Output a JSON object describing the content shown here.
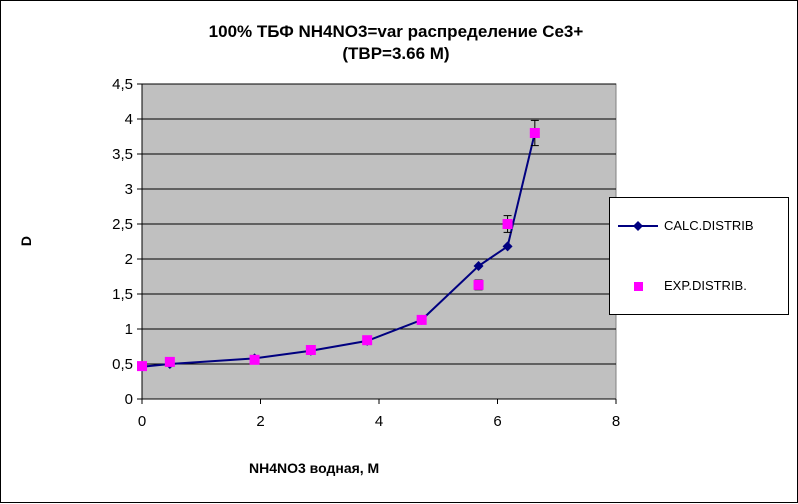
{
  "chart_data": {
    "type": "line",
    "title_line1": "100%  ТБФ  NH4NO3=var распределение Ce3+",
    "title_line2": "(TBP=3.66 M)",
    "xlabel": "NH4NO3  водная, М",
    "ylabel": "D",
    "xlim": [
      0,
      8
    ],
    "ylim": [
      0,
      4.5
    ],
    "x_ticks": [
      "0",
      "2",
      "4",
      "6",
      "8"
    ],
    "x_tick_values": [
      0,
      2,
      4,
      6,
      8
    ],
    "y_ticks": [
      "0",
      "0,5",
      "1",
      "1,5",
      "2",
      "2,5",
      "3",
      "3,5",
      "4",
      "4,5"
    ],
    "y_tick_values": [
      0,
      0.5,
      1,
      1.5,
      2,
      2.5,
      3,
      3.5,
      4,
      4.5
    ],
    "grid": "horizontal",
    "plot_background": "#c0c0c0",
    "legend_position": "right",
    "series": [
      {
        "name": "CALC.DISTRIB",
        "style": "line-diamond",
        "color": "#000080",
        "points": [
          {
            "x": 0.0,
            "y": 0.46
          },
          {
            "x": 0.47,
            "y": 0.5
          },
          {
            "x": 1.9,
            "y": 0.58
          },
          {
            "x": 2.85,
            "y": 0.69
          },
          {
            "x": 3.8,
            "y": 0.83
          },
          {
            "x": 4.72,
            "y": 1.13
          },
          {
            "x": 5.68,
            "y": 1.9
          },
          {
            "x": 6.17,
            "y": 2.18
          },
          {
            "x": 6.63,
            "y": 3.8
          }
        ]
      },
      {
        "name": "EXP.DISTRIB.",
        "style": "marker-square",
        "color": "#ff00ff",
        "points": [
          {
            "x": 0.0,
            "y": 0.47,
            "err": 0.03
          },
          {
            "x": 0.47,
            "y": 0.53,
            "err": 0.03
          },
          {
            "x": 1.9,
            "y": 0.56,
            "err": 0.03
          },
          {
            "x": 2.85,
            "y": 0.7,
            "err": 0.03
          },
          {
            "x": 3.8,
            "y": 0.84,
            "err": 0.03
          },
          {
            "x": 4.72,
            "y": 1.13,
            "err": 0.05
          },
          {
            "x": 5.68,
            "y": 1.63,
            "err": 0.07
          },
          {
            "x": 6.17,
            "y": 2.5,
            "err": 0.12
          },
          {
            "x": 6.63,
            "y": 3.8,
            "err": 0.18
          }
        ]
      }
    ]
  }
}
